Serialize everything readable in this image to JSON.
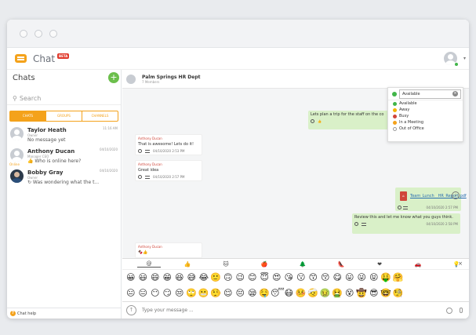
{
  "app": {
    "title": "Chat",
    "badge": "BETA"
  },
  "sidebar": {
    "heading": "Chats",
    "new_chat": "+",
    "search_placeholder": "Search",
    "tabs": [
      "CHATS",
      "GROUPS",
      "CHANNELS"
    ],
    "items": [
      {
        "name": "Taylor Heath",
        "role": "Owner",
        "message": "No message yet",
        "time": "11:16 AM"
      },
      {
        "name": "Anthony Ducan",
        "role": "Manager CEO",
        "message": "👍 Who is online here?",
        "time": "04/10/2020",
        "status": "Online"
      },
      {
        "name": "Bobby Gray",
        "role": "Owner",
        "message": "↻ Was wondering what the t...",
        "time": "04/10/2020"
      }
    ],
    "footer": "Chat help"
  },
  "conversation": {
    "title": "Palm Springs HR Dept",
    "members": "7 Members",
    "out_msg1": "Lets plan a trip for the staff on the co",
    "in_msgs": [
      {
        "sender": "Anthony Ducan",
        "text": "That is awesome! Lets do it!",
        "time": "04/10/2020 2:53 PM"
      },
      {
        "sender": "Anthony Ducan",
        "text": "Great idea",
        "time": "04/10/2020 2:57 PM"
      },
      {
        "sender": "Anthony Ducan",
        "text": "🍫👍"
      }
    ],
    "file": {
      "name": "Team_Lunch__HR_Report.pdf",
      "time": "04/10/2020 2:57 PM"
    },
    "out_msg2": {
      "text": "Review this and let me know what you guys think.",
      "time": "04/10/2020 2:58 PM"
    }
  },
  "status_menu": {
    "current": "Available",
    "options": [
      {
        "label": "Available",
        "color": "#41b549"
      },
      {
        "label": "Away",
        "color": "#f4b400"
      },
      {
        "label": "Busy",
        "color": "#d0463a"
      },
      {
        "label": "In a Meeting",
        "color": "#f4a21b"
      },
      {
        "label": "Out of Office",
        "color": "#ffffff"
      }
    ]
  },
  "emoji_panel": {
    "categories": [
      "@",
      "👍",
      "🐱",
      "🍎",
      "🌲",
      "👠",
      "❤",
      "🚗",
      "💡"
    ],
    "rows": [
      [
        "😀",
        "😃",
        "😄",
        "😁",
        "😆",
        "😅",
        "😂",
        "🙂",
        "🙃",
        "😉",
        "😊",
        "😇",
        "😍",
        "😘",
        "😗",
        "😙",
        "😚",
        "😋",
        "😛",
        "😜",
        "😝",
        "🤑",
        "🤗"
      ],
      [
        "😐",
        "😑",
        "😶",
        "😏",
        "😒",
        "🙄",
        "😬",
        "🤥",
        "😌",
        "😔",
        "😪",
        "🤤",
        "😴",
        "😷",
        "🤒",
        "🤕",
        "🤢",
        "🤮",
        "😵",
        "🤠",
        "😎",
        "🤓",
        "🧐"
      ],
      [
        "😕",
        "😟",
        "🙁",
        "😮",
        "😯",
        "😲",
        "😳",
        "😦",
        "😧",
        "😨",
        "😰",
        "😥",
        "😢",
        "😭",
        "😱",
        "😖",
        "😣",
        "😞",
        "😓",
        "😩",
        "😫",
        "😤",
        "😡"
      ]
    ],
    "close": "×"
  },
  "composer": {
    "placeholder": "Type your message ..."
  }
}
